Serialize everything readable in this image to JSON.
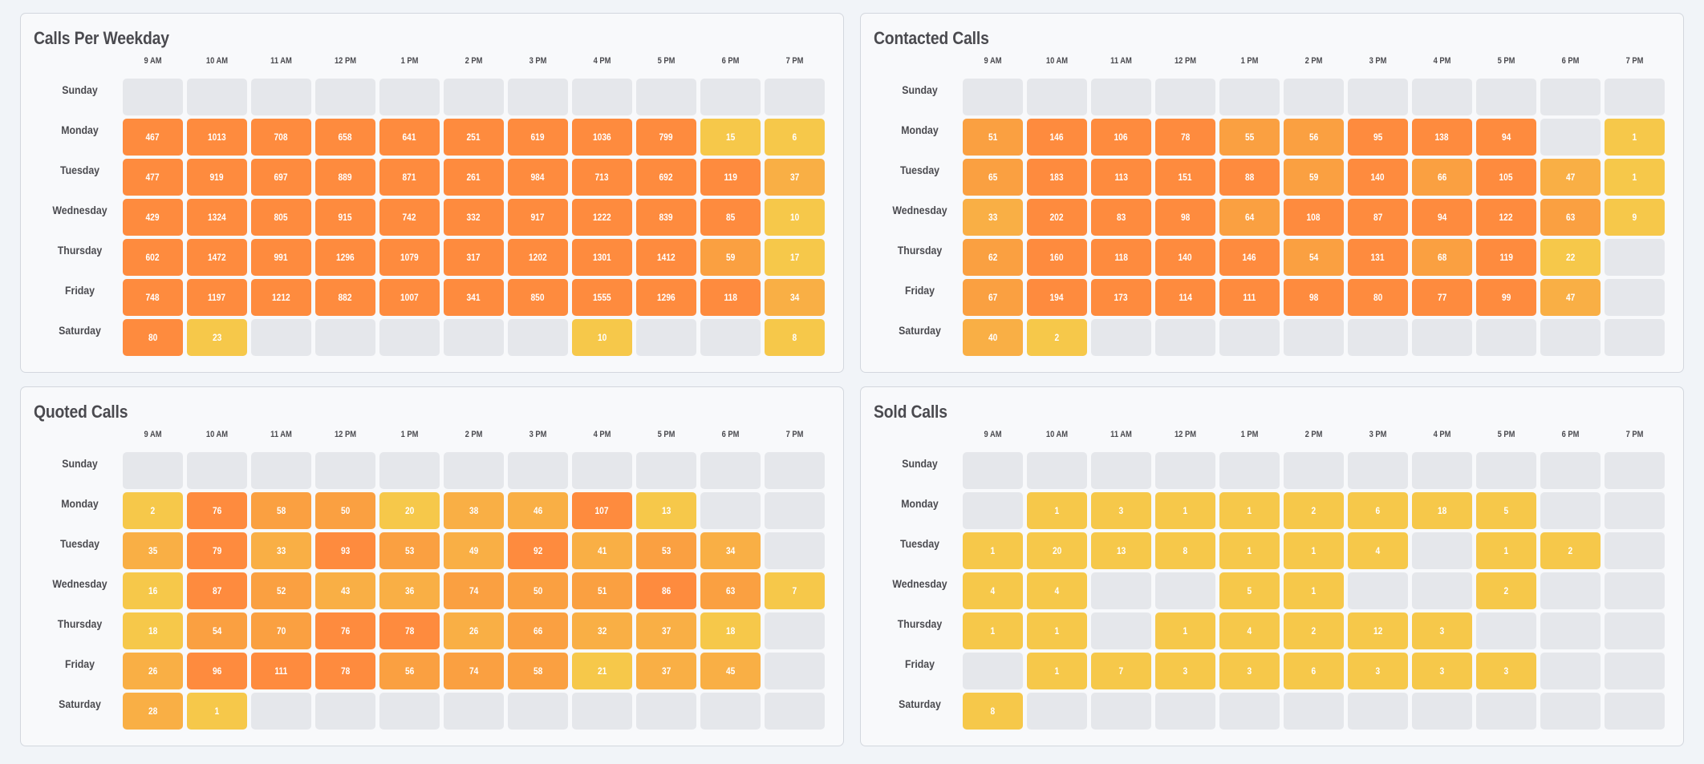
{
  "hours": [
    "9 AM",
    "10 AM",
    "11 AM",
    "12 PM",
    "1 PM",
    "2 PM",
    "3 PM",
    "4 PM",
    "5 PM",
    "6 PM",
    "7 PM"
  ],
  "days": [
    "Sunday",
    "Monday",
    "Tuesday",
    "Wednesday",
    "Thursday",
    "Friday",
    "Saturday"
  ],
  "colors": {
    "empty": "#E5E7EB",
    "low": "#F6C84A",
    "light": "#F9AF45",
    "mid": "#FAA041",
    "high": "#FE8B3E"
  },
  "chart_data": [
    {
      "type": "heatmap",
      "title": "Calls Per Weekday",
      "x": [
        "9 AM",
        "10 AM",
        "11 AM",
        "12 PM",
        "1 PM",
        "2 PM",
        "3 PM",
        "4 PM",
        "5 PM",
        "6 PM",
        "7 PM"
      ],
      "y": [
        "Sunday",
        "Monday",
        "Tuesday",
        "Wednesday",
        "Thursday",
        "Friday",
        "Saturday"
      ],
      "values": [
        [
          null,
          null,
          null,
          null,
          null,
          null,
          null,
          null,
          null,
          null,
          null
        ],
        [
          467,
          1013,
          708,
          658,
          641,
          251,
          619,
          1036,
          799,
          15,
          6
        ],
        [
          477,
          919,
          697,
          889,
          871,
          261,
          984,
          713,
          692,
          119,
          37
        ],
        [
          429,
          1324,
          805,
          915,
          742,
          332,
          917,
          1222,
          839,
          85,
          10
        ],
        [
          602,
          1472,
          991,
          1296,
          1079,
          317,
          1202,
          1301,
          1412,
          59,
          17
        ],
        [
          748,
          1197,
          1212,
          882,
          1007,
          341,
          850,
          1555,
          1296,
          118,
          34
        ],
        [
          80,
          23,
          null,
          null,
          null,
          null,
          null,
          10,
          null,
          null,
          8
        ]
      ]
    },
    {
      "type": "heatmap",
      "title": "Contacted Calls",
      "x": [
        "9 AM",
        "10 AM",
        "11 AM",
        "12 PM",
        "1 PM",
        "2 PM",
        "3 PM",
        "4 PM",
        "5 PM",
        "6 PM",
        "7 PM"
      ],
      "y": [
        "Sunday",
        "Monday",
        "Tuesday",
        "Wednesday",
        "Thursday",
        "Friday",
        "Saturday"
      ],
      "values": [
        [
          null,
          null,
          null,
          null,
          null,
          null,
          null,
          null,
          null,
          null,
          null
        ],
        [
          51,
          146,
          106,
          78,
          55,
          56,
          95,
          138,
          94,
          null,
          1
        ],
        [
          65,
          183,
          113,
          151,
          88,
          59,
          140,
          66,
          105,
          47,
          1
        ],
        [
          33,
          202,
          83,
          98,
          64,
          108,
          87,
          94,
          122,
          63,
          9
        ],
        [
          62,
          160,
          118,
          140,
          146,
          54,
          131,
          68,
          119,
          22,
          null
        ],
        [
          67,
          194,
          173,
          114,
          111,
          98,
          80,
          77,
          99,
          47,
          null
        ],
        [
          40,
          2,
          null,
          null,
          null,
          null,
          null,
          null,
          null,
          null,
          null
        ]
      ]
    },
    {
      "type": "heatmap",
      "title": "Quoted Calls",
      "x": [
        "9 AM",
        "10 AM",
        "11 AM",
        "12 PM",
        "1 PM",
        "2 PM",
        "3 PM",
        "4 PM",
        "5 PM",
        "6 PM",
        "7 PM"
      ],
      "y": [
        "Sunday",
        "Monday",
        "Tuesday",
        "Wednesday",
        "Thursday",
        "Friday",
        "Saturday"
      ],
      "values": [
        [
          null,
          null,
          null,
          null,
          null,
          null,
          null,
          null,
          null,
          null,
          null
        ],
        [
          2,
          76,
          58,
          50,
          20,
          38,
          46,
          107,
          13,
          null,
          null
        ],
        [
          35,
          79,
          33,
          93,
          53,
          49,
          92,
          41,
          53,
          34,
          null
        ],
        [
          16,
          87,
          52,
          43,
          36,
          74,
          50,
          51,
          86,
          63,
          7
        ],
        [
          18,
          54,
          70,
          76,
          78,
          26,
          66,
          32,
          37,
          18,
          null
        ],
        [
          26,
          96,
          111,
          78,
          56,
          74,
          58,
          21,
          37,
          45,
          null
        ],
        [
          28,
          1,
          null,
          null,
          null,
          null,
          null,
          null,
          null,
          null,
          null
        ]
      ]
    },
    {
      "type": "heatmap",
      "title": "Sold Calls",
      "x": [
        "9 AM",
        "10 AM",
        "11 AM",
        "12 PM",
        "1 PM",
        "2 PM",
        "3 PM",
        "4 PM",
        "5 PM",
        "6 PM",
        "7 PM"
      ],
      "y": [
        "Sunday",
        "Monday",
        "Tuesday",
        "Wednesday",
        "Thursday",
        "Friday",
        "Saturday"
      ],
      "values": [
        [
          null,
          null,
          null,
          null,
          null,
          null,
          null,
          null,
          null,
          null,
          null
        ],
        [
          null,
          1,
          3,
          1,
          1,
          2,
          6,
          18,
          5,
          null,
          null
        ],
        [
          1,
          20,
          13,
          8,
          1,
          1,
          4,
          null,
          1,
          2,
          null
        ],
        [
          4,
          4,
          null,
          null,
          5,
          1,
          null,
          null,
          2,
          null,
          null
        ],
        [
          1,
          1,
          null,
          1,
          4,
          2,
          12,
          3,
          null,
          null,
          null
        ],
        [
          null,
          1,
          7,
          3,
          3,
          6,
          3,
          3,
          3,
          null,
          null
        ],
        [
          8,
          null,
          null,
          null,
          null,
          null,
          null,
          null,
          null,
          null,
          null
        ]
      ]
    }
  ]
}
